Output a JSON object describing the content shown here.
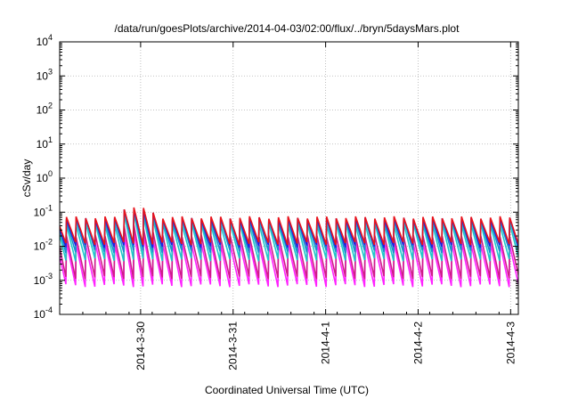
{
  "chart_data": {
    "type": "line",
    "title": "/data/run/goesPlots/archive/2014-04-03/02:00/flux/../bryn/5daysMars.plot",
    "xlabel": "Coordinated Universal Time (UTC)",
    "ylabel": "cSv/day",
    "yscale": "log",
    "ylim": [
      0.0001,
      10000
    ],
    "y_ticks": [
      {
        "base": "10",
        "exp": "-4"
      },
      {
        "base": "10",
        "exp": "-3"
      },
      {
        "base": "10",
        "exp": "-2"
      },
      {
        "base": "10",
        "exp": "-1"
      },
      {
        "base": "10",
        "exp": "0"
      },
      {
        "base": "10",
        "exp": "1"
      },
      {
        "base": "10",
        "exp": "2"
      },
      {
        "base": "10",
        "exp": "3"
      },
      {
        "base": "10",
        "exp": "4"
      }
    ],
    "xlim": [
      "2014-03-29T03:00",
      "2014-04-03T02:00"
    ],
    "x_ticks": [
      {
        "label": "2014-3-30",
        "value": "2014-03-30T00:00"
      },
      {
        "label": "2014-3-31",
        "value": "2014-03-31T00:00"
      },
      {
        "label": "2014-4-1",
        "value": "2014-04-01T00:00"
      },
      {
        "label": "2014-4-2",
        "value": "2014-04-02T00:00"
      },
      {
        "label": "2014-4-3",
        "value": "2014-04-03T00:00"
      }
    ],
    "grid": true,
    "pattern": "sawtooth, period ~2.5 h",
    "series": [
      {
        "color": "#e8141c",
        "peak": 0.07,
        "trough": 0.012
      },
      {
        "color": "#2020e0",
        "peak": 0.065,
        "trough": 0.01
      },
      {
        "color": "#1a8fd0",
        "peak": 0.06,
        "trough": 0.007
      },
      {
        "color": "#20c8c8",
        "peak": 0.045,
        "trough": 0.004
      },
      {
        "color": "#d01a8a",
        "peak": 0.02,
        "trough": 0.0012
      },
      {
        "color": "#ff22ff",
        "peak": 0.012,
        "trough": 0.0007
      }
    ]
  }
}
